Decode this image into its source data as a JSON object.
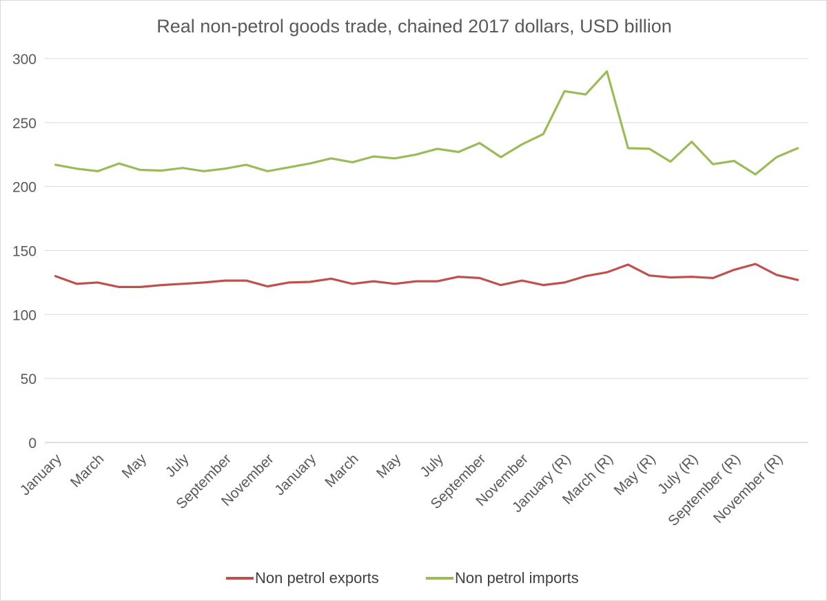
{
  "chart_data": {
    "type": "line",
    "title": "Real non-petrol goods trade, chained 2017 dollars, USD billion",
    "xlabel": "",
    "ylabel": "",
    "ylim": [
      0,
      300
    ],
    "yticks": [
      0,
      50,
      100,
      150,
      200,
      250,
      300
    ],
    "grid": true,
    "legend_position": "bottom",
    "x_tick_labels": [
      "January",
      "March",
      "May",
      "July",
      "September",
      "November",
      "January",
      "March",
      "May",
      "July",
      "September",
      "November",
      "January (R)",
      "March (R)",
      "May (R)",
      "July (R)",
      "September (R)",
      "November (R)"
    ],
    "series": [
      {
        "name": "Non petrol exports",
        "color": "#c0504d",
        "values": [
          130,
          124,
          125,
          121.5,
          121.5,
          123,
          124,
          125,
          126.5,
          126.5,
          122,
          125,
          125.5,
          128,
          124,
          126,
          124,
          126,
          126,
          129.5,
          128.5,
          123,
          126.5,
          123,
          125,
          130,
          133,
          139,
          130.5,
          129,
          129.5,
          128.5,
          135,
          139.5,
          131,
          127
        ]
      },
      {
        "name": "Non petrol imports",
        "color": "#9bbb59",
        "values": [
          217,
          214,
          212,
          218,
          213,
          212.5,
          214.5,
          212,
          214,
          217,
          212,
          215,
          218,
          222,
          219,
          223.5,
          222,
          225,
          229.5,
          227,
          234,
          223,
          233,
          241,
          274.5,
          272,
          290,
          230,
          229.5,
          219.5,
          235,
          217.5,
          220,
          209.5,
          223,
          230
        ]
      }
    ]
  }
}
